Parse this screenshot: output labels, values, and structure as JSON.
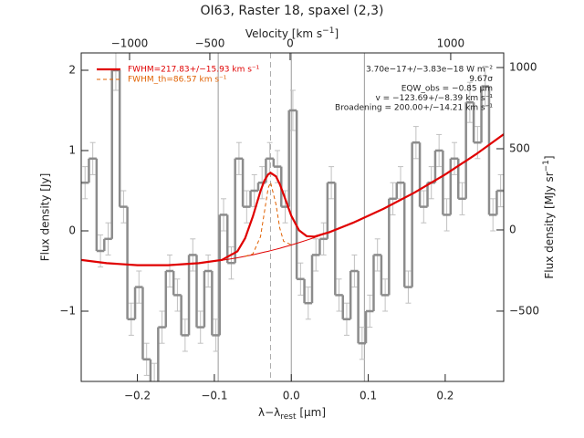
{
  "chart_data": {
    "type": "step",
    "title": "OI63, Raster 18, spaxel (2,3)",
    "xlabel": {
      "text": "λ−λ",
      "sub": "rest",
      "tail": " [μm]"
    },
    "ylabel": "Flux density [Jy]",
    "y2label": {
      "text": "Flux density [MJy sr",
      "sup": "−1",
      "tail": "]"
    },
    "x2label": {
      "text": "Velocity [km s",
      "sup": "−1",
      "tail": "]"
    },
    "color": "#8c8c8c",
    "error_color": "#c0c0c0",
    "x": [
      -0.268,
      -0.258,
      -0.248,
      -0.238,
      -0.228,
      -0.218,
      -0.208,
      -0.198,
      -0.188,
      -0.178,
      -0.168,
      -0.158,
      -0.148,
      -0.138,
      -0.128,
      -0.118,
      -0.108,
      -0.098,
      -0.088,
      -0.078,
      -0.068,
      -0.058,
      -0.048,
      -0.038,
      -0.028,
      -0.018,
      -0.008,
      0.002,
      0.012,
      0.022,
      0.032,
      0.042,
      0.052,
      0.062,
      0.072,
      0.082,
      0.092,
      0.102,
      0.112,
      0.122,
      0.132,
      0.142,
      0.152,
      0.162,
      0.172,
      0.182,
      0.192,
      0.202,
      0.212,
      0.222,
      0.232,
      0.242,
      0.252,
      0.262,
      0.272
    ],
    "values": [
      0.6,
      0.9,
      -0.25,
      -0.1,
      2.0,
      0.3,
      -1.1,
      -0.7,
      -1.6,
      -1.9,
      -1.2,
      -0.5,
      -0.8,
      -1.3,
      -0.3,
      -1.2,
      -0.5,
      -1.3,
      0.2,
      -0.4,
      0.9,
      0.3,
      0.5,
      0.6,
      0.9,
      0.8,
      0.3,
      1.5,
      -0.6,
      -0.9,
      -0.3,
      -0.1,
      0.6,
      -0.8,
      -1.1,
      -0.5,
      -1.4,
      -1.0,
      -0.3,
      -0.8,
      0.4,
      0.6,
      -0.7,
      1.1,
      0.3,
      0.6,
      1.0,
      0.2,
      0.9,
      0.4,
      1.6,
      1.1,
      1.8,
      0.2,
      0.5
    ],
    "errors": [
      0.2,
      0.2,
      0.2,
      0.2,
      0.25,
      0.2,
      0.2,
      0.2,
      0.2,
      0.25,
      0.2,
      0.2,
      0.2,
      0.2,
      0.2,
      0.2,
      0.2,
      0.2,
      0.2,
      0.2,
      0.2,
      0.2,
      0.2,
      0.2,
      0.2,
      0.2,
      0.2,
      0.25,
      0.2,
      0.2,
      0.2,
      0.2,
      0.2,
      0.2,
      0.2,
      0.2,
      0.2,
      0.2,
      0.2,
      0.2,
      0.2,
      0.2,
      0.2,
      0.2,
      0.2,
      0.2,
      0.2,
      0.2,
      0.2,
      0.2,
      0.25,
      0.2,
      0.25,
      0.2,
      0.2
    ],
    "xlim": [
      -0.273,
      0.276
    ],
    "xticks": [
      {
        "value": -0.2,
        "label": "−0.2"
      },
      {
        "value": -0.1,
        "label": "−0.1"
      },
      {
        "value": 0,
        "label": "0.0"
      },
      0.1,
      0.2
    ],
    "ylim": [
      -1.875,
      2.216
    ],
    "yticks": [
      {
        "value": -1,
        "label": "−1"
      },
      0,
      1,
      2
    ],
    "y2lim": [
      -933,
      1090
    ],
    "y2ticks": [
      {
        "value": -500,
        "label": "−500"
      },
      0,
      500,
      1000
    ],
    "x2lim": [
      -1301,
      1330
    ],
    "x2ticks": [
      {
        "value": -1000,
        "label": "−1000"
      },
      {
        "value": -500,
        "label": "−500"
      },
      0,
      1000
    ],
    "vlines": [
      -0.095,
      0,
      0.095
    ],
    "line_center": -0.027,
    "baseline": {
      "color": "#e00000",
      "x": [
        -0.273,
        -0.24,
        -0.2,
        -0.16,
        -0.12,
        -0.09,
        -0.07,
        -0.06,
        -0.05,
        -0.04,
        -0.035,
        -0.03,
        -0.027,
        -0.02,
        -0.015,
        -0.01,
        0,
        0.01,
        0.02,
        0.03,
        0.05,
        0.08,
        0.12,
        0.16,
        0.2,
        0.24,
        0.276
      ],
      "values": [
        -0.362,
        -0.402,
        -0.427,
        -0.427,
        -0.402,
        -0.366,
        -0.335,
        -0.317,
        -0.298,
        -0.276,
        -0.265,
        -0.254,
        -0.246,
        -0.229,
        -0.217,
        -0.203,
        -0.176,
        -0.147,
        -0.116,
        -0.084,
        -0.015,
        0.1,
        0.276,
        0.476,
        0.702,
        0.953,
        1.202
      ]
    },
    "fits": [
      {
        "name": "FWHM=217.83+/−15.93 km s⁻¹",
        "color": "#e00000",
        "dashed": false,
        "x": [
          -0.273,
          -0.24,
          -0.2,
          -0.16,
          -0.12,
          -0.09,
          -0.07,
          -0.06,
          -0.05,
          -0.04,
          -0.035,
          -0.03,
          -0.027,
          -0.02,
          -0.015,
          -0.01,
          0,
          0.01,
          0.02,
          0.03,
          0.05,
          0.08,
          0.12,
          0.16,
          0.2,
          0.24,
          0.276
        ],
        "values": [
          -0.362,
          -0.402,
          -0.427,
          -0.427,
          -0.402,
          -0.361,
          -0.254,
          -0.092,
          0.179,
          0.497,
          0.625,
          0.704,
          0.724,
          0.679,
          0.583,
          0.455,
          0.189,
          0.007,
          -0.066,
          -0.072,
          -0.015,
          0.1,
          0.276,
          0.476,
          0.702,
          0.953,
          1.202
        ]
      },
      {
        "name": "FWHM_th=86.57 km s⁻¹",
        "color": "#e06000",
        "dashed": true,
        "x": [
          -0.06,
          -0.05,
          -0.04,
          -0.035,
          -0.03,
          -0.027,
          -0.02,
          -0.015,
          -0.01,
          0
        ],
        "values": [
          -0.317,
          -0.288,
          -0.072,
          0.23,
          0.534,
          0.604,
          0.333,
          0.035,
          -0.129,
          -0.174
        ]
      }
    ],
    "annotations": [
      "3.70e−17+/−3.83e−18 W m⁻²",
      "9.67σ",
      "EQW_obs = −0.85 μm",
      "v = −123.69+/−8.39 km s⁻¹",
      "Broadening = 200.00+/−14.21 km s⁻¹"
    ]
  }
}
